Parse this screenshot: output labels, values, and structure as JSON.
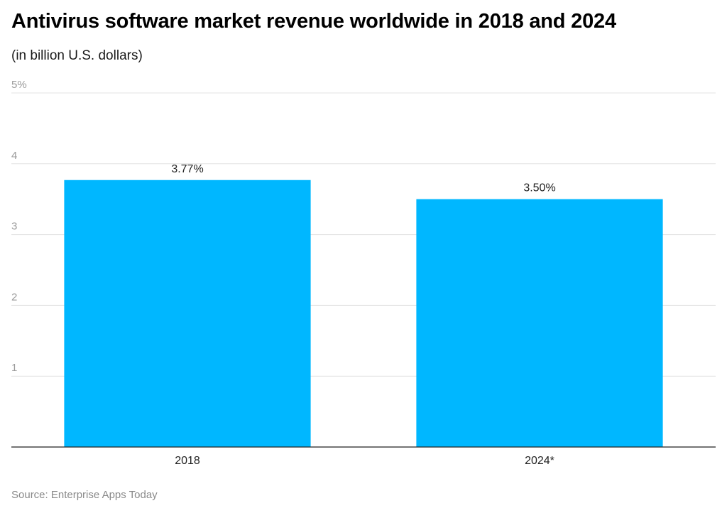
{
  "chart_data": {
    "type": "bar",
    "title": "Antivirus software market revenue worldwide in 2018 and 2024",
    "subtitle": "(in billion U.S. dollars)",
    "categories": [
      "2018",
      "2024*"
    ],
    "values": [
      3.77,
      3.5
    ],
    "data_labels": [
      "3.77%",
      "3.50%"
    ],
    "yticks": [
      {
        "value": 1,
        "label": "1"
      },
      {
        "value": 2,
        "label": "2"
      },
      {
        "value": 3,
        "label": "3"
      },
      {
        "value": 4,
        "label": "4"
      },
      {
        "value": 5,
        "label": "5%"
      }
    ],
    "ylim": [
      0,
      5
    ],
    "grid": true,
    "legend": "none",
    "bar_color": "#00b7ff",
    "source": "Source: Enterprise Apps Today"
  }
}
